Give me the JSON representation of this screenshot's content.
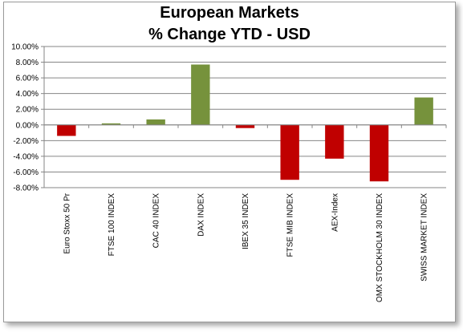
{
  "chart_data": {
    "type": "bar",
    "title": "European Markets",
    "subtitle": "% Change YTD - USD",
    "xlabel": "",
    "ylabel": "",
    "ylim": [
      -8,
      10
    ],
    "yticks": [
      10,
      8,
      6,
      4,
      2,
      0,
      -2,
      -4,
      -6,
      -8
    ],
    "ytick_labels": [
      "10.00%",
      "8.00%",
      "6.00%",
      "4.00%",
      "2.00%",
      "0.00%",
      "-2.00%",
      "-4.00%",
      "-6.00%",
      "-8.00%"
    ],
    "categories": [
      "Euro Stoxx 50 Pr",
      "FTSE 100 INDEX",
      "CAC 40 INDEX",
      "DAX INDEX",
      "IBEX 35 INDEX",
      "FTSE MIB INDEX",
      "AEX-Index",
      "OMX STOCKHOLM 30 INDEX",
      "SWISS MARKET INDEX"
    ],
    "values": [
      -1.4,
      0.2,
      0.7,
      7.7,
      -0.4,
      -7.0,
      -4.3,
      -7.2,
      3.5
    ],
    "grid": true,
    "legend": "none",
    "colors": {
      "positive": "#76923c",
      "negative": "#c00000",
      "grid": "#868686",
      "axis": "#868686"
    }
  }
}
